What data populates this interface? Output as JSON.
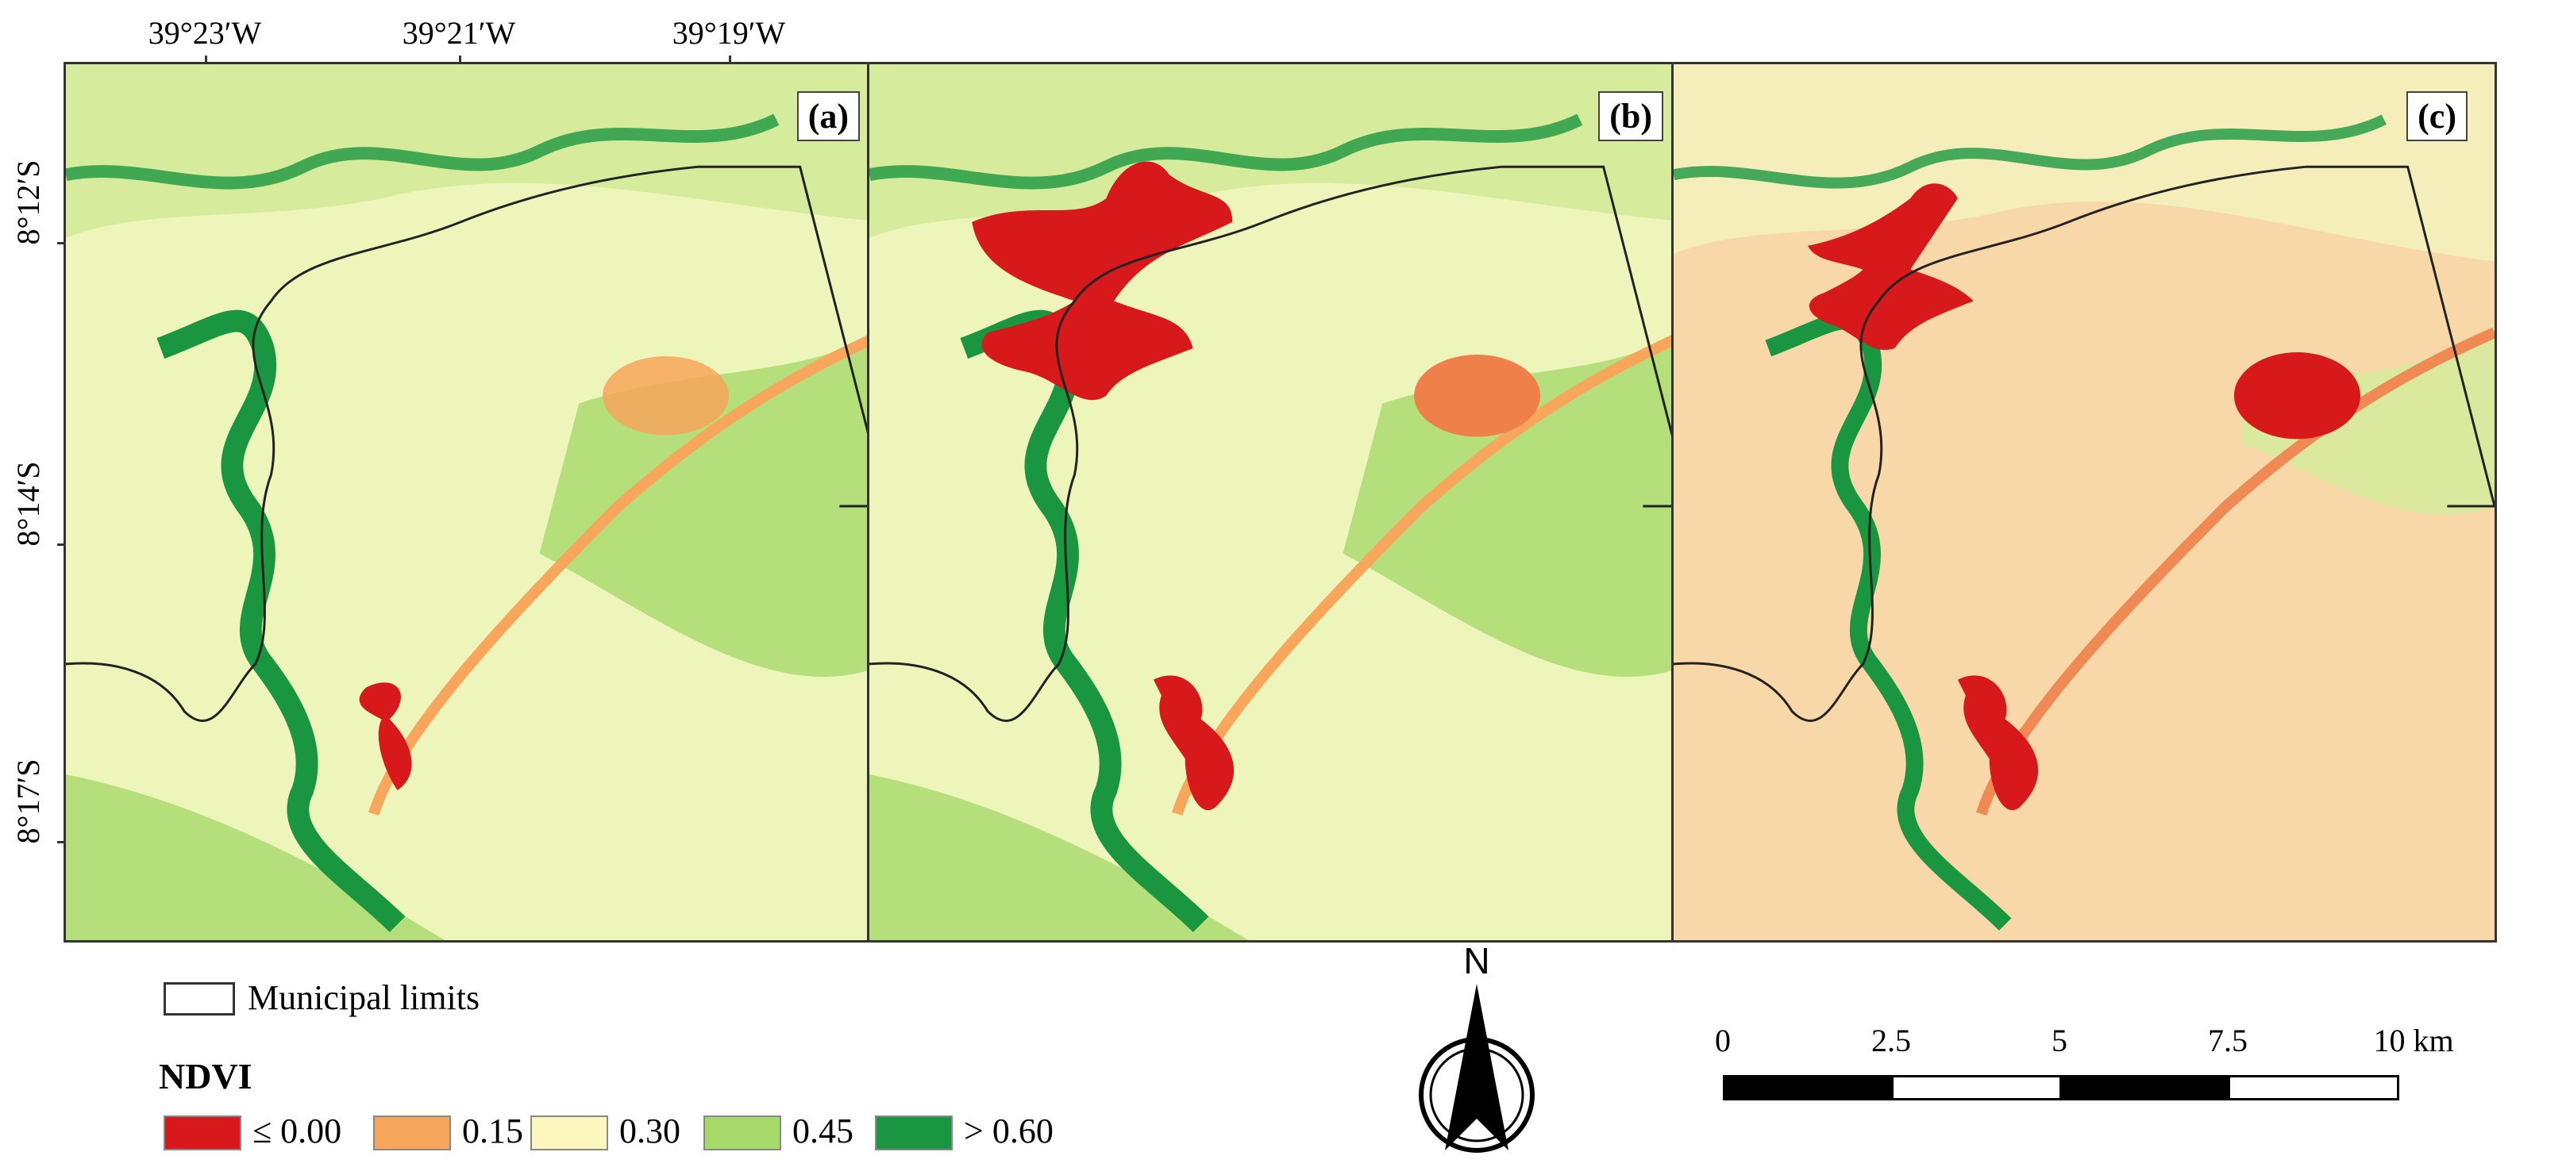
{
  "coords": {
    "longitudes": [
      "39°23′W",
      "39°21′W",
      "39°19′W"
    ],
    "latitudes": [
      "8°12′S",
      "8°14′S",
      "8°17′S"
    ]
  },
  "panels": [
    {
      "label": "(a)"
    },
    {
      "label": "(b)"
    },
    {
      "label": "(c)"
    }
  ],
  "legend": {
    "municipal_limits": "Municipal limits",
    "ndvi_title": "NDVI",
    "classes": [
      {
        "label": "≤ 0.00",
        "color": "#d7191c"
      },
      {
        "label": "0.15",
        "color": "#f7a65b"
      },
      {
        "label": "0.30",
        "color": "#fcf7bf"
      },
      {
        "label": "0.45",
        "color": "#a6d96a"
      },
      {
        "label": "> 0.60",
        "color": "#1a9641"
      }
    ]
  },
  "north_arrow": {
    "label": "N"
  },
  "scale_bar": {
    "labels": [
      "0",
      "2.5",
      "5",
      "7.5",
      "10 km"
    ]
  }
}
